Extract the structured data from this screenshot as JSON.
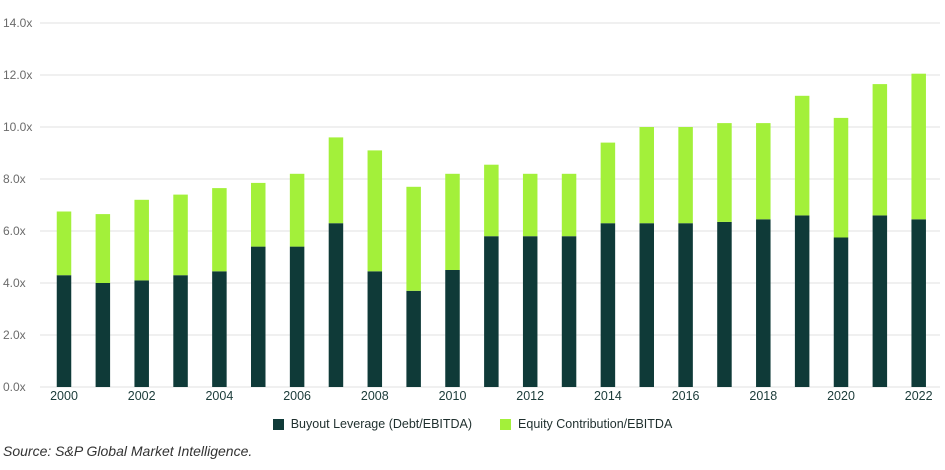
{
  "chart_data": {
    "type": "bar",
    "stacked": true,
    "categories": [
      "2000",
      "2001",
      "2002",
      "2003",
      "2004",
      "2005",
      "2006",
      "2007",
      "2008",
      "2009",
      "2010",
      "2011",
      "2012",
      "2013",
      "2014",
      "2015",
      "2016",
      "2017",
      "2018",
      "2019",
      "2020",
      "2021",
      "2022"
    ],
    "x_tick_labels": [
      "2000",
      "2002",
      "2004",
      "2006",
      "2008",
      "2010",
      "2012",
      "2014",
      "2016",
      "2018",
      "2020",
      "2022"
    ],
    "series": [
      {
        "name": "Buyout Leverage (Debt/EBITDA)",
        "color": "#0f3a38",
        "values": [
          4.3,
          4.0,
          4.1,
          4.3,
          4.45,
          5.4,
          5.4,
          6.3,
          4.45,
          3.7,
          4.5,
          5.8,
          5.8,
          5.8,
          6.3,
          6.3,
          6.3,
          6.35,
          6.45,
          6.6,
          5.75,
          6.6,
          6.45
        ]
      },
      {
        "name": "Equity Contribution/EBITDA",
        "color": "#a3f03a",
        "values": [
          2.45,
          2.65,
          3.1,
          3.1,
          3.2,
          2.45,
          2.8,
          3.3,
          4.65,
          4.0,
          3.7,
          2.75,
          2.4,
          2.4,
          3.1,
          3.7,
          3.7,
          3.8,
          3.7,
          4.6,
          4.6,
          5.05,
          5.6
        ]
      }
    ],
    "y_tick_labels": [
      "0.0x",
      "2.0x",
      "4.0x",
      "6.0x",
      "8.0x",
      "10.0x",
      "12.0x",
      "14.0x"
    ],
    "ylim": [
      0,
      14
    ],
    "grid": true,
    "legend_position": "bottom",
    "title": "",
    "xlabel": "",
    "ylabel": ""
  },
  "source": "Source: S&P Global Market Intelligence."
}
